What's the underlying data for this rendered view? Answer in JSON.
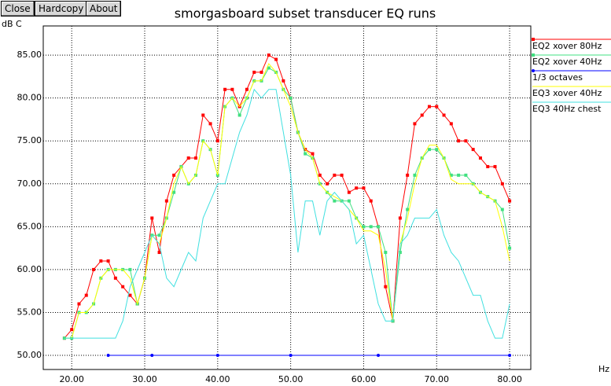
{
  "buttons": [
    "Close",
    "Hardcopy",
    "About"
  ],
  "chart_data": {
    "type": "line",
    "title": "smorgasboard subset transducer EQ runs",
    "y_label": "dB C",
    "x_label": "Hz",
    "x": [
      19,
      20,
      21,
      22,
      23,
      24,
      25,
      26,
      27,
      28,
      29,
      30,
      31,
      32,
      33,
      34,
      35,
      36,
      37,
      38,
      39,
      40,
      41,
      42,
      43,
      44,
      45,
      46,
      47,
      48,
      49,
      50,
      51,
      52,
      53,
      54,
      55,
      56,
      57,
      58,
      59,
      60,
      61,
      62,
      63,
      64,
      65,
      66,
      67,
      68,
      69,
      70,
      71,
      72,
      73,
      74,
      75,
      76,
      77,
      78,
      79,
      80
    ],
    "series": [
      {
        "name": "EQ2 xover 80Hz",
        "color": "#ff0000",
        "marker": "square",
        "values": [
          52,
          53,
          56,
          57,
          60,
          61,
          61,
          59,
          58,
          57,
          56,
          59,
          66,
          62,
          68,
          71,
          72,
          73,
          73,
          78,
          77,
          75,
          81,
          81,
          79,
          81,
          83,
          83,
          85,
          84.5,
          82,
          80,
          76,
          74,
          73.5,
          71,
          70,
          71,
          71,
          69,
          69.5,
          69.5,
          68,
          65,
          58,
          54,
          66,
          71,
          77,
          78,
          79,
          79,
          78,
          77,
          75,
          75,
          74,
          73,
          72,
          72,
          70,
          68
        ]
      },
      {
        "name": "EQ2 xover 40Hz",
        "color": "#40e080",
        "marker": "square",
        "values": [
          52,
          52,
          55,
          55,
          56,
          59,
          60,
          60,
          60,
          60,
          56,
          59,
          64,
          64,
          66,
          69,
          72,
          70,
          71,
          75,
          74,
          71,
          79,
          80,
          78,
          80,
          82,
          82,
          83.5,
          83,
          81,
          80,
          76,
          73.5,
          73,
          70,
          69,
          68,
          68,
          68,
          66,
          65,
          65,
          65,
          62,
          54,
          62,
          67,
          71,
          73,
          74,
          74,
          73,
          71,
          71,
          71,
          70,
          69,
          68.5,
          68,
          67,
          62.5
        ]
      },
      {
        "name": "1/3 octaves",
        "color": "#0000ff",
        "marker": "circle",
        "x": [
          25,
          31,
          40,
          50,
          62,
          80
        ],
        "values": [
          50,
          50,
          50,
          50,
          50,
          50
        ]
      },
      {
        "name": "EQ3 xover 40Hz",
        "color": "#ffff00",
        "marker": "none",
        "values": [
          52,
          52,
          55,
          55,
          56,
          59,
          60,
          60,
          60,
          59,
          56,
          59,
          64,
          63,
          66,
          70,
          72,
          70,
          71,
          75,
          74,
          71,
          79,
          80,
          79,
          80,
          82,
          82,
          84,
          83,
          81,
          79,
          76,
          74,
          73,
          70,
          69,
          68.5,
          68,
          67,
          66,
          64.5,
          64.5,
          64,
          60,
          54,
          63,
          66,
          70,
          73,
          74.5,
          74.5,
          73,
          70.5,
          70,
          70,
          70,
          69,
          68.5,
          68,
          65,
          61
        ]
      },
      {
        "name": "EQ3 40Hz chest",
        "color": "#40e0e0",
        "marker": "none",
        "values": [
          52,
          52,
          52,
          52,
          52,
          52,
          52,
          52,
          54,
          58,
          60,
          62,
          64,
          63,
          59,
          58,
          60,
          62,
          61,
          66,
          68,
          70,
          70,
          73,
          76,
          78,
          81,
          80,
          81,
          81,
          76,
          71,
          62,
          68,
          68,
          64,
          68,
          69,
          68,
          67,
          63,
          64,
          60,
          56,
          54,
          54,
          63,
          64,
          66,
          66,
          66,
          67,
          64,
          62,
          61,
          59,
          57,
          57,
          54,
          52,
          52,
          56
        ]
      }
    ],
    "xlim": [
      16.1,
      82.9
    ],
    "ylim": [
      48.35,
      88.4
    ],
    "xticks": [
      {
        "value": 20,
        "label": "20.00"
      },
      {
        "value": 30,
        "label": "30.00"
      },
      {
        "value": 40,
        "label": "40.00"
      },
      {
        "value": 50,
        "label": "50.00"
      },
      {
        "value": 60,
        "label": "60.00"
      },
      {
        "value": 70,
        "label": "70.00"
      },
      {
        "value": 80,
        "label": "80.00"
      }
    ],
    "yticks": [
      {
        "value": 50,
        "label": "50.00"
      },
      {
        "value": 55,
        "label": "55.00"
      },
      {
        "value": 60,
        "label": "60.00"
      },
      {
        "value": 65,
        "label": "65.00"
      },
      {
        "value": 70,
        "label": "70.00"
      },
      {
        "value": 75,
        "label": "75.00"
      },
      {
        "value": 80,
        "label": "80.00"
      },
      {
        "value": 85,
        "label": "85.00"
      }
    ],
    "grid": true,
    "legend": "right"
  }
}
